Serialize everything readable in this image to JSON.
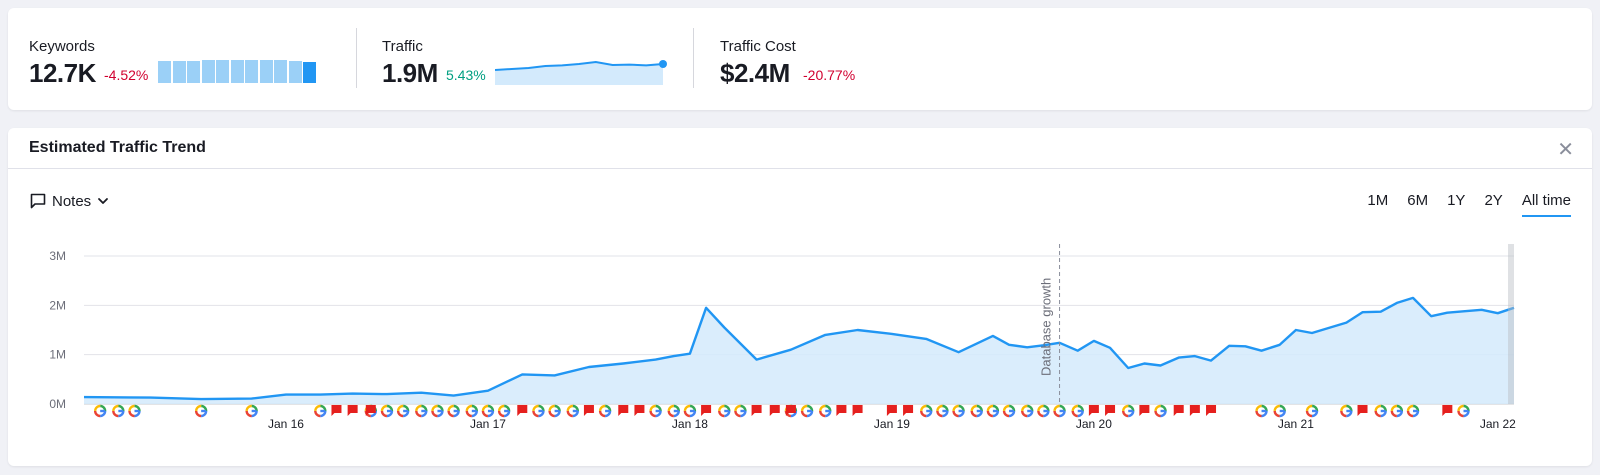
{
  "summary": {
    "keywords": {
      "label": "Keywords",
      "value": "12.7K",
      "delta": "-4.52%",
      "bars": [
        0.92,
        0.92,
        0.92,
        0.97,
        0.94,
        0.94,
        0.94,
        0.97,
        0.95,
        0.92,
        0.88
      ]
    },
    "traffic": {
      "label": "Traffic",
      "value": "1.9M",
      "delta": "5.43%"
    },
    "traffic_cost": {
      "label": "Traffic Cost",
      "value": "$2.4M",
      "delta": "-20.77%"
    }
  },
  "trend": {
    "title": "Estimated Traffic Trend",
    "close_icon": "close-icon",
    "notes": {
      "label": "Notes",
      "icon": "comment-icon",
      "chevron": "chevron-down-icon"
    },
    "ranges": [
      {
        "label": "1M",
        "active": false
      },
      {
        "label": "6M",
        "active": false
      },
      {
        "label": "1Y",
        "active": false
      },
      {
        "label": "2Y",
        "active": false
      },
      {
        "label": "All time",
        "active": true
      }
    ]
  },
  "chart_data": {
    "type": "area",
    "title": "",
    "xlabel": "",
    "ylabel": "",
    "y_tick_labels": [
      "0M",
      "1M",
      "2M",
      "3M"
    ],
    "ylim": [
      0,
      3000000
    ],
    "x_tick_labels": [
      "Jan 16",
      "Jan 17",
      "Jan 18",
      "Jan 19",
      "Jan 20",
      "Jan 21",
      "Jan 22"
    ],
    "x_start": 2015.0,
    "x_end": 2022.08,
    "x_tick_values": [
      2016.0,
      2017.0,
      2018.0,
      2019.0,
      2020.0,
      2021.0,
      2022.0
    ],
    "grid": true,
    "annotation": {
      "label": "Database growth",
      "x": 2019.83
    },
    "color": "#2196f3",
    "fill": "#d3eafc",
    "series": [
      {
        "x": [
          2015.0,
          2015.33,
          2015.58,
          2015.83,
          2016.0,
          2016.17,
          2016.33,
          2016.5,
          2016.67,
          2016.83,
          2017.0,
          2017.17,
          2017.33,
          2017.5,
          2017.67,
          2017.83,
          2017.92,
          2018.0,
          2018.08,
          2018.17,
          2018.33,
          2018.5,
          2018.67,
          2018.83,
          2019.0,
          2019.17,
          2019.33,
          2019.5,
          2019.58,
          2019.67,
          2019.75,
          2019.83,
          2019.92,
          2020.0,
          2020.08,
          2020.17,
          2020.25,
          2020.33,
          2020.42,
          2020.5,
          2020.58,
          2020.67,
          2020.75,
          2020.83,
          2020.92,
          2021.0,
          2021.08,
          2021.17,
          2021.25,
          2021.33,
          2021.42,
          2021.5,
          2021.58,
          2021.67,
          2021.75,
          2021.83,
          2021.92,
          2022.0,
          2022.08
        ],
        "y": [
          140000,
          130000,
          100000,
          110000,
          190000,
          190000,
          210000,
          200000,
          230000,
          170000,
          270000,
          600000,
          580000,
          750000,
          820000,
          900000,
          970000,
          1020000,
          1950000,
          1550000,
          900000,
          1100000,
          1400000,
          1500000,
          1420000,
          1320000,
          1050000,
          1380000,
          1200000,
          1150000,
          1190000,
          1240000,
          1080000,
          1280000,
          1140000,
          730000,
          820000,
          780000,
          940000,
          970000,
          880000,
          1180000,
          1170000,
          1080000,
          1200000,
          1500000,
          1440000,
          1550000,
          1650000,
          1860000,
          1870000,
          2050000,
          2150000,
          1780000,
          1850000,
          1880000,
          1910000,
          1840000,
          1950000
        ]
      }
    ],
    "markers": {
      "google": [
        2015.08,
        2015.17,
        2015.25,
        2015.58,
        2015.83,
        2016.17,
        2016.42,
        2016.5,
        2016.58,
        2016.67,
        2016.75,
        2016.83,
        2016.92,
        2017.0,
        2017.08,
        2017.25,
        2017.33,
        2017.42,
        2017.58,
        2017.83,
        2017.92,
        2018.0,
        2018.17,
        2018.25,
        2018.5,
        2018.58,
        2018.67,
        2019.17,
        2019.25,
        2019.33,
        2019.42,
        2019.5,
        2019.58,
        2019.67,
        2019.75,
        2019.83,
        2019.92,
        2020.17,
        2020.33,
        2020.83,
        2020.92,
        2021.08,
        2021.25,
        2021.42,
        2021.5,
        2021.58,
        2021.83
      ],
      "notes": [
        2016.25,
        2016.33,
        2016.42,
        2017.17,
        2017.5,
        2017.67,
        2017.75,
        2018.08,
        2018.33,
        2018.42,
        2018.5,
        2018.75,
        2018.83,
        2019.0,
        2019.08,
        2020.0,
        2020.08,
        2020.25,
        2020.42,
        2020.5,
        2020.58,
        2021.33,
        2021.75
      ]
    }
  },
  "traffic_spark": [
    0.55,
    0.6,
    0.65,
    0.75,
    0.78,
    0.85,
    0.95,
    0.8,
    0.82,
    0.78,
    0.85
  ]
}
